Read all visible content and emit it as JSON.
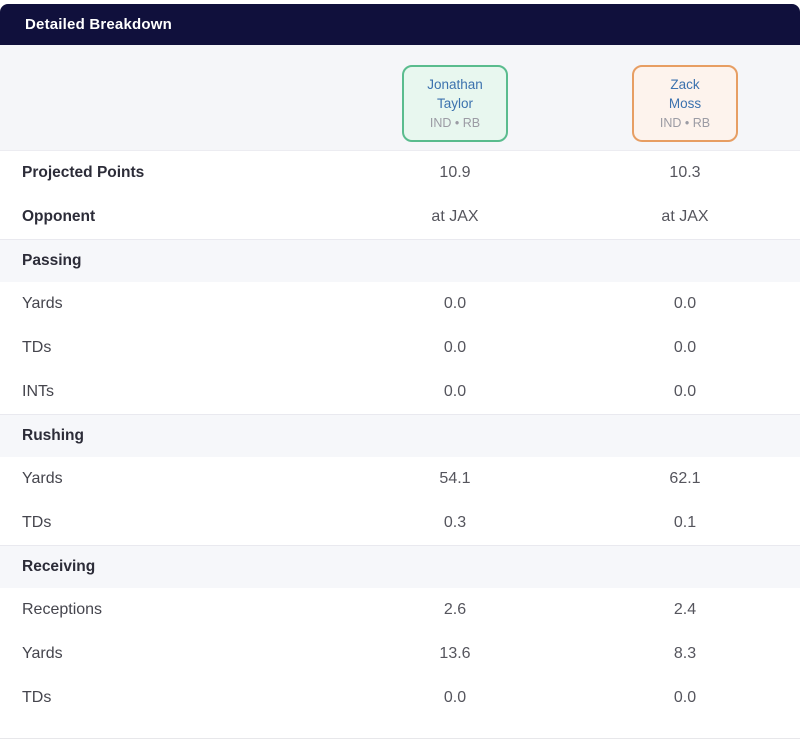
{
  "header": {
    "title": "Detailed Breakdown"
  },
  "colors": {
    "header_bg": "#10103c",
    "compare_bg": "#f5f6f9",
    "section_bg": "#f6f7fa",
    "player1_border": "#5abc8e",
    "player1_bg": "#e8f7ef",
    "player2_border": "#e79e63",
    "player2_bg": "#fdf3ed",
    "player_name_text": "#3c72ae"
  },
  "players": [
    {
      "first_name": "Jonathan",
      "last_name": "Taylor",
      "meta": "IND • RB"
    },
    {
      "first_name": "Zack",
      "last_name": "Moss",
      "meta": "IND • RB"
    }
  ],
  "table": {
    "rows": [
      {
        "type": "stat-bold",
        "label": "Projected Points",
        "values": [
          "10.9",
          "10.3"
        ]
      },
      {
        "type": "stat-bold",
        "label": "Opponent",
        "values": [
          "at JAX",
          "at JAX"
        ]
      },
      {
        "type": "section",
        "label": "Passing",
        "values": []
      },
      {
        "type": "stat",
        "label": "Yards",
        "values": [
          "0.0",
          "0.0"
        ]
      },
      {
        "type": "stat",
        "label": "TDs",
        "values": [
          "0.0",
          "0.0"
        ]
      },
      {
        "type": "stat",
        "label": "INTs",
        "values": [
          "0.0",
          "0.0"
        ]
      },
      {
        "type": "section",
        "label": "Rushing",
        "values": []
      },
      {
        "type": "stat",
        "label": "Yards",
        "values": [
          "54.1",
          "62.1"
        ]
      },
      {
        "type": "stat",
        "label": "TDs",
        "values": [
          "0.3",
          "0.1"
        ]
      },
      {
        "type": "section",
        "label": "Receiving",
        "values": []
      },
      {
        "type": "stat",
        "label": "Receptions",
        "values": [
          "2.6",
          "2.4"
        ]
      },
      {
        "type": "stat",
        "label": "Yards",
        "values": [
          "13.6",
          "8.3"
        ]
      },
      {
        "type": "stat",
        "label": "TDs",
        "values": [
          "0.0",
          "0.0"
        ]
      }
    ]
  }
}
